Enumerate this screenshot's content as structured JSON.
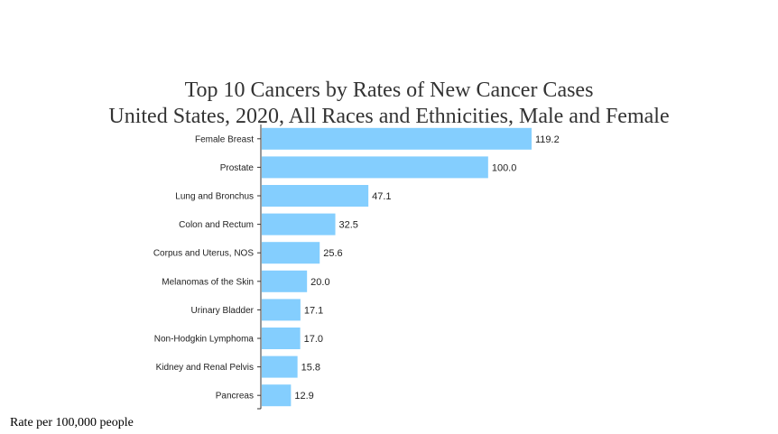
{
  "chart_data": {
    "type": "bar",
    "orientation": "horizontal",
    "title": "Top 10 Cancers by Rates of New Cancer Cases",
    "subtitle": "United States, 2020, All Races and Ethnicities, Male and Female",
    "categories": [
      "Female Breast",
      "Prostate",
      "Lung and Bronchus",
      "Colon and Rectum",
      "Corpus and Uterus, NOS",
      "Melanomas of the Skin",
      "Urinary Bladder",
      "Non-Hodgkin Lymphoma",
      "Kidney and Renal Pelvis",
      "Pancreas"
    ],
    "values": [
      119.2,
      100.0,
      47.1,
      32.5,
      25.6,
      20.0,
      17.1,
      17.0,
      15.8,
      12.9
    ],
    "value_labels": [
      "119.2",
      "100.0",
      "47.1",
      "32.5",
      "25.6",
      "20.0",
      "17.1",
      "17.0",
      "15.8",
      "12.9"
    ],
    "xlim": [
      0,
      120
    ],
    "bar_color": "#84cefe",
    "grid": false,
    "legend": "none"
  },
  "footnote": "Rate per 100,000 people"
}
